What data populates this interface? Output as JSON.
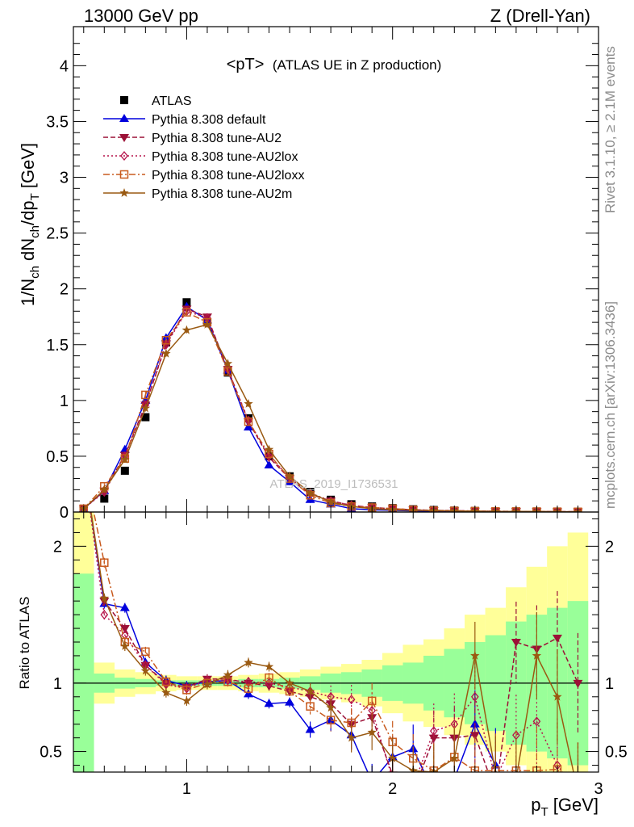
{
  "header": {
    "left": "13000 GeV pp",
    "right": "Z (Drell-Yan)"
  },
  "side_text": {
    "rivet": "Rivet 3.1.10, ≥ 2.1M events",
    "mcplots": "mcplots.cern.ch [arXiv:1306.3436]"
  },
  "chart_data": [
    {
      "type": "line",
      "title": "<pT> (ATLAS UE in Z production)",
      "title_main": "<pT>",
      "title_sub": "(ATLAS UE in Z production)",
      "xlabel": "p_T [GeV]",
      "ylabel": "1/N_ch dN_ch/dp_T [GeV]",
      "xlim": [
        0.45,
        3.0
      ],
      "ylim": [
        0,
        4.35
      ],
      "yticks": [
        0,
        0.5,
        1,
        1.5,
        2,
        2.5,
        3,
        3.5,
        4
      ],
      "ytick_labels": [
        "0",
        "0.5",
        "1",
        "1.5",
        "2",
        "2.5",
        "3",
        "3.5",
        "4"
      ],
      "watermark": "ATLAS_2019_I1736531",
      "legend_position": "top-left",
      "x": [
        0.5,
        0.6,
        0.7,
        0.8,
        0.9,
        1.0,
        1.1,
        1.2,
        1.3,
        1.4,
        1.5,
        1.6,
        1.7,
        1.8,
        1.9,
        2.0,
        2.1,
        2.2,
        2.3,
        2.4,
        2.5,
        2.6,
        2.7,
        2.8,
        2.9
      ],
      "series": [
        {
          "name": "ATLAS",
          "color": "#000000",
          "marker": "square",
          "line": "none",
          "values": [
            0.02,
            0.12,
            0.37,
            0.85,
            1.52,
            1.88,
            1.7,
            1.25,
            0.84,
            0.5,
            0.32,
            0.18,
            0.11,
            0.07,
            0.05,
            0.035,
            0.025,
            0.018,
            0.013,
            0.01,
            0.007,
            0.005,
            0.004,
            0.003,
            0.002
          ]
        },
        {
          "name": "Pythia 8.308 default",
          "color": "#0000dd",
          "marker": "triangle-up",
          "line": "solid",
          "values": [
            0.03,
            0.19,
            0.56,
            1.0,
            1.56,
            1.84,
            1.72,
            1.27,
            0.76,
            0.42,
            0.27,
            0.11,
            0.07,
            0.03,
            0.02,
            0.015,
            0.01,
            0.008,
            0.006,
            0.005,
            0.004,
            0.003,
            0.002,
            0.002,
            0.001
          ]
        },
        {
          "name": "Pythia 8.308 tune-AU2",
          "color": "#9c1137",
          "marker": "triangle-down",
          "line": "dashed",
          "values": [
            0.03,
            0.19,
            0.51,
            0.96,
            1.51,
            1.82,
            1.75,
            1.28,
            0.81,
            0.49,
            0.3,
            0.16,
            0.1,
            0.06,
            0.04,
            0.03,
            0.02,
            0.015,
            0.012,
            0.009,
            0.007,
            0.006,
            0.005,
            0.004,
            0.003
          ]
        },
        {
          "name": "Pythia 8.308 tune-AU2lox",
          "color": "#b5134a",
          "marker": "diamond-open",
          "line": "dotted",
          "values": [
            0.03,
            0.18,
            0.5,
            0.96,
            1.5,
            1.8,
            1.74,
            1.28,
            0.82,
            0.5,
            0.31,
            0.17,
            0.1,
            0.06,
            0.04,
            0.03,
            0.02,
            0.015,
            0.012,
            0.009,
            0.007,
            0.005,
            0.004,
            0.003,
            0.002
          ]
        },
        {
          "name": "Pythia 8.308 tune-AU2loxx",
          "color": "#c85a1e",
          "marker": "square-open",
          "line": "dashdot",
          "values": [
            0.03,
            0.23,
            0.48,
            1.05,
            1.54,
            1.79,
            1.7,
            1.26,
            0.81,
            0.52,
            0.3,
            0.15,
            0.08,
            0.05,
            0.04,
            0.03,
            0.02,
            0.012,
            0.01,
            0.008,
            0.006,
            0.005,
            0.004,
            0.003,
            0.002
          ]
        },
        {
          "name": "Pythia 8.308 tune-AU2m",
          "color": "#9a5a12",
          "marker": "star",
          "line": "solid",
          "values": [
            0.03,
            0.2,
            0.47,
            0.93,
            1.42,
            1.63,
            1.68,
            1.33,
            0.97,
            0.56,
            0.32,
            0.17,
            0.09,
            0.05,
            0.03,
            0.02,
            0.015,
            0.012,
            0.01,
            0.008,
            0.006,
            0.005,
            0.004,
            0.003,
            0.002
          ]
        }
      ]
    },
    {
      "type": "line",
      "xlabel": "p_T [GeV]",
      "ylabel": "Ratio to ATLAS",
      "xlim": [
        0.45,
        3.0
      ],
      "ylim": [
        0.35,
        2.25
      ],
      "yticks": [
        0.5,
        1,
        2
      ],
      "ytick_labels": [
        "0.5",
        "1",
        "2"
      ],
      "xticks": [
        1,
        2,
        3
      ],
      "xtick_labels": [
        "1",
        "2",
        "3"
      ],
      "reference_line": 1,
      "x": [
        0.5,
        0.6,
        0.7,
        0.8,
        0.9,
        1.0,
        1.1,
        1.2,
        1.3,
        1.4,
        1.5,
        1.6,
        1.7,
        1.8,
        1.9,
        2.0,
        2.1,
        2.2,
        2.3,
        2.4,
        2.5,
        2.6,
        2.7,
        2.8,
        2.9
      ],
      "band_edges": [
        0.45,
        0.55,
        0.65,
        0.75,
        0.85,
        0.95,
        1.05,
        1.15,
        1.25,
        1.35,
        1.45,
        1.55,
        1.65,
        1.75,
        1.85,
        1.95,
        2.05,
        2.15,
        2.25,
        2.35,
        2.45,
        2.55,
        2.65,
        2.75,
        2.85,
        2.95
      ],
      "bands": {
        "stat": {
          "color": "#99ff99",
          "lo": [
            0.1,
            0.93,
            0.96,
            0.97,
            0.98,
            0.98,
            0.98,
            0.98,
            0.97,
            0.97,
            0.96,
            0.95,
            0.93,
            0.92,
            0.9,
            0.87,
            0.85,
            0.8,
            0.75,
            0.7,
            0.65,
            0.55,
            0.5,
            0.45,
            0.4
          ],
          "hi": [
            1.8,
            1.07,
            1.04,
            1.03,
            1.02,
            1.02,
            1.02,
            1.02,
            1.03,
            1.03,
            1.04,
            1.05,
            1.07,
            1.08,
            1.1,
            1.13,
            1.15,
            1.2,
            1.25,
            1.3,
            1.35,
            1.45,
            1.5,
            1.55,
            1.6
          ]
        },
        "total": {
          "color": "#ffff99",
          "lo": [
            0.1,
            0.85,
            0.9,
            0.92,
            0.94,
            0.95,
            0.95,
            0.95,
            0.94,
            0.93,
            0.92,
            0.9,
            0.88,
            0.86,
            0.83,
            0.78,
            0.72,
            0.68,
            0.62,
            0.55,
            0.5,
            0.4,
            0.35,
            0.3,
            0.25
          ],
          "hi": [
            2.3,
            1.15,
            1.1,
            1.08,
            1.06,
            1.05,
            1.05,
            1.05,
            1.06,
            1.07,
            1.08,
            1.1,
            1.12,
            1.14,
            1.17,
            1.22,
            1.28,
            1.32,
            1.4,
            1.5,
            1.55,
            1.7,
            1.85,
            2.0,
            2.1
          ]
        }
      },
      "series": [
        {
          "name": "Pythia 8.308 default",
          "values": [
            2.6,
            1.58,
            1.55,
            1.15,
            1.02,
            0.98,
            1.01,
            1.02,
            0.92,
            0.85,
            0.86,
            0.66,
            0.73,
            0.62,
            0.28,
            0.46,
            0.52,
            0.2,
            0.3,
            0.7,
            0.4,
            null,
            null,
            null,
            null
          ]
        },
        {
          "name": "Pythia 8.308 tune-AU2",
          "values": [
            2.6,
            1.6,
            1.4,
            1.13,
            1.0,
            0.97,
            1.03,
            1.03,
            1.0,
            0.98,
            0.94,
            0.9,
            0.85,
            0.7,
            0.75,
            0.33,
            0.2,
            0.6,
            0.6,
            0.62,
            0.2,
            1.3,
            1.25,
            1.33,
            1.0
          ]
        },
        {
          "name": "Pythia 8.308 tune-AU2lox",
          "values": [
            2.6,
            1.5,
            1.35,
            1.13,
            0.99,
            0.96,
            1.02,
            1.02,
            1.01,
            1.0,
            0.97,
            0.94,
            0.9,
            0.88,
            0.8,
            0.3,
            0.25,
            0.65,
            0.7,
            0.9,
            0.3,
            0.62,
            0.72,
            0.4,
            0.2
          ]
        },
        {
          "name": "Pythia 8.308 tune-AU2loxx",
          "values": [
            2.6,
            1.88,
            1.3,
            1.23,
            1.01,
            0.95,
            1.0,
            1.01,
            0.96,
            1.04,
            0.94,
            0.83,
            0.73,
            0.71,
            0.87,
            0.57,
            0.45,
            0.36,
            0.46,
            0.36,
            0.36,
            0.36,
            0.36,
            0.37,
            0.2
          ]
        },
        {
          "name": "Pythia 8.308 tune-AU2m",
          "values": [
            2.6,
            1.62,
            1.27,
            1.09,
            0.93,
            0.87,
            0.99,
            1.06,
            1.15,
            1.12,
            1.0,
            0.94,
            0.82,
            0.6,
            0.64,
            0.45,
            0.36,
            0.35,
            0.45,
            1.2,
            0.34,
            0.3,
            1.2,
            0.9,
            0.2
          ]
        }
      ]
    }
  ]
}
